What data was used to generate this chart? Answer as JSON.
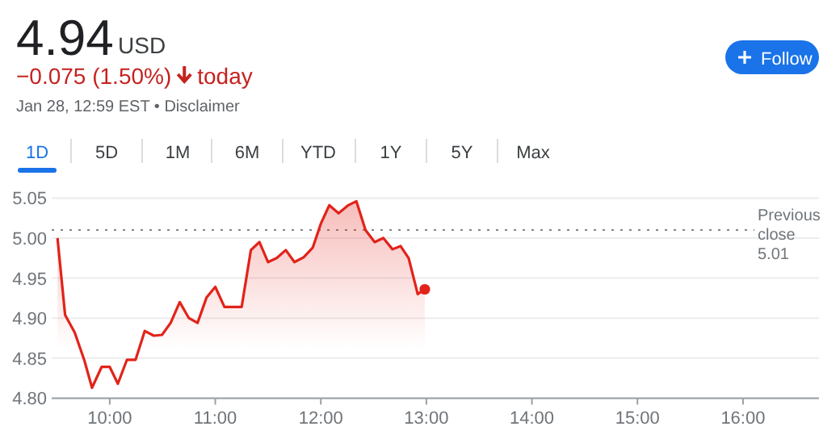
{
  "chart_data": {
    "type": "area",
    "title": "4.94",
    "annotations": [
      "USD",
      "−0.075 (1.50%)",
      "today",
      "Jan 28, 12:59 EST • Disclaimer",
      "Follow",
      "1D",
      "5D",
      "1M",
      "6M",
      "YTD",
      "1Y",
      "5Y",
      "Max"
    ],
    "x": [
      9.505,
      9.577,
      9.668,
      9.76,
      9.832,
      9.923,
      10.0,
      10.077,
      10.163,
      10.245,
      10.332,
      10.418,
      10.495,
      10.577,
      10.663,
      10.75,
      10.832,
      10.918,
      11.0,
      11.087,
      11.163,
      11.25,
      11.337,
      11.418,
      11.5,
      11.582,
      11.668,
      11.75,
      11.837,
      11.923,
      12.0,
      12.08,
      12.168,
      12.26,
      12.337,
      12.423,
      12.51,
      12.592,
      12.679,
      12.755,
      12.832,
      12.918,
      12.985
    ],
    "series": [
      {
        "color": "#e2231a",
        "values": [
          5.0,
          4.904,
          4.882,
          4.847,
          4.813,
          4.839,
          4.839,
          4.818,
          4.848,
          4.848,
          4.884,
          4.878,
          4.879,
          4.894,
          4.92,
          4.9,
          4.894,
          4.926,
          4.939,
          4.914,
          4.914,
          4.914,
          4.985,
          4.995,
          4.97,
          4.975,
          4.985,
          4.97,
          4.976,
          4.988,
          5.018,
          5.041,
          5.031,
          5.041,
          5.046,
          5.01,
          4.995,
          5.0,
          4.986,
          4.99,
          4.975,
          4.93,
          4.936
        ]
      }
    ],
    "xlim": [
      9.45,
      16.72
    ],
    "ylim": [
      4.8,
      5.05
    ],
    "xticks": [
      {
        "value": 10,
        "label": "10:00"
      },
      {
        "value": 11,
        "label": "11:00"
      },
      {
        "value": 12,
        "label": "12:00"
      },
      {
        "value": 13,
        "label": "13:00"
      },
      {
        "value": 14,
        "label": "14:00"
      },
      {
        "value": 15,
        "label": "15:00"
      },
      {
        "value": 16,
        "label": "16:00"
      }
    ],
    "yticks": [
      {
        "value": 4.8,
        "label": "4.80"
      },
      4.85,
      {
        "value": 4.9,
        "label": "4.90"
      },
      4.95,
      {
        "value": 5,
        "label": "5.00"
      },
      5.05
    ],
    "ref_lines": [
      {
        "axis": "y",
        "value": 5.01,
        "label": "Previous close 5.01",
        "color": "#80868b",
        "line_style": "dotted"
      }
    ],
    "grid": "y",
    "line_style": "solid",
    "marker": "none"
  }
}
